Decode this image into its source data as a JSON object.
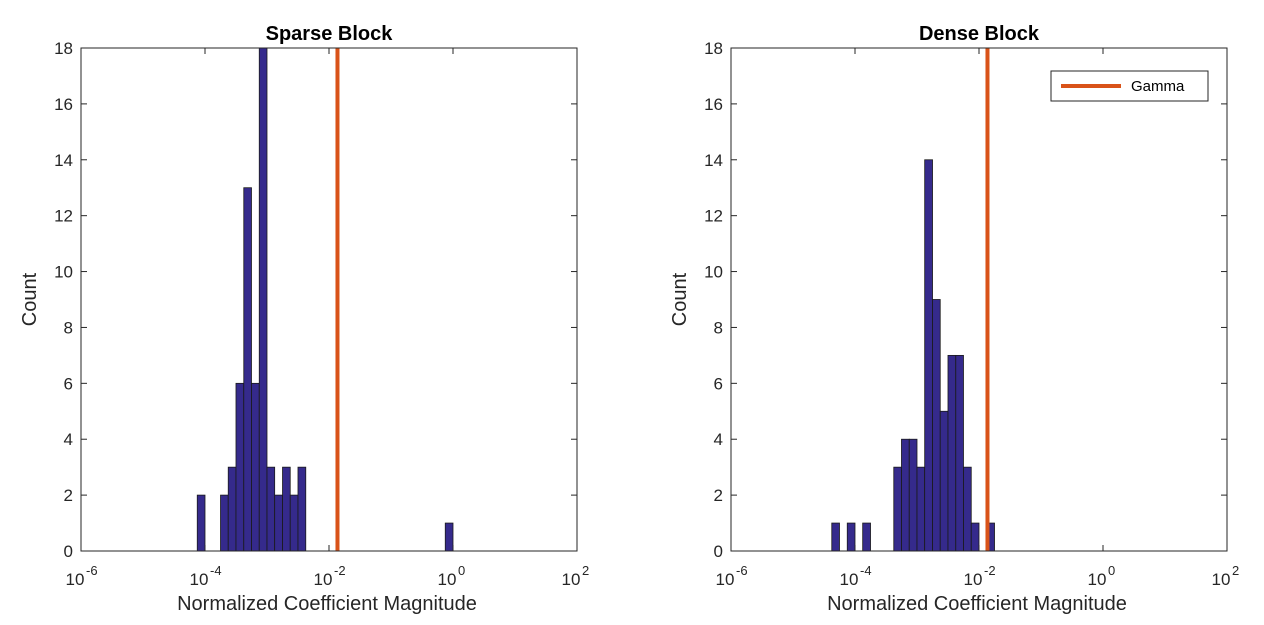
{
  "colors": {
    "bar_fill": "#352a8c",
    "bar_edge": "#1a1a1a",
    "gamma_line": "#d95319",
    "axis": "#262626",
    "background": "#ffffff"
  },
  "chart_data": [
    {
      "type": "bar",
      "subtype": "histogram",
      "title": "Sparse Block",
      "xlabel": "Normalized Coefficient Magnitude",
      "ylabel": "Count",
      "xscale": "log",
      "xlim": [
        1e-06,
        100
      ],
      "ylim": [
        0,
        18
      ],
      "yticks": [
        0,
        2,
        4,
        6,
        8,
        10,
        12,
        14,
        16,
        18
      ],
      "xtick_mantissa": [
        "10",
        "10",
        "10",
        "10",
        "10"
      ],
      "xtick_exponents": [
        "-6",
        "-4",
        "-2",
        "0",
        "2"
      ],
      "bins": {
        "edges": [
          7.5e-06,
          1e-05,
          1.33e-05,
          1.78e-05,
          2.37e-05,
          3.16e-05,
          4.22e-05,
          5.62e-05,
          7.5e-05,
          0.0001,
          0.000133,
          0.000178,
          0.000237,
          0.000316,
          0.000422,
          0.000562,
          0.00075,
          0.001,
          0.00133,
          0.00178,
          0.00237,
          0.00316,
          0.00422,
          0.00562,
          0.0075,
          0.01,
          0.0133,
          0.0178,
          0.0237,
          0.0316,
          0.0422,
          0.0562,
          0.075,
          0.1,
          0.133,
          0.178,
          0.237,
          0.316,
          0.422,
          0.562,
          0.75,
          1.0,
          1.33
        ],
        "counts": [
          0,
          0,
          0,
          0,
          0,
          0,
          0,
          0,
          2,
          0,
          0,
          2,
          3,
          6,
          13,
          6,
          18,
          3,
          2,
          3,
          2,
          3,
          0,
          0,
          0,
          0,
          0,
          0,
          0,
          0,
          0,
          0,
          0,
          0,
          0,
          0,
          0,
          0,
          0,
          0,
          1,
          0
        ]
      },
      "gamma": 0.0137,
      "legend": null
    },
    {
      "type": "bar",
      "subtype": "histogram",
      "title": "Dense Block",
      "xlabel": "Normalized Coefficient Magnitude",
      "ylabel": "Count",
      "xscale": "log",
      "xlim": [
        1e-06,
        100
      ],
      "ylim": [
        0,
        18
      ],
      "yticks": [
        0,
        2,
        4,
        6,
        8,
        10,
        12,
        14,
        16,
        18
      ],
      "xtick_mantissa": [
        "10",
        "10",
        "10",
        "10",
        "10"
      ],
      "xtick_exponents": [
        "-6",
        "-4",
        "-2",
        "0",
        "2"
      ],
      "bins": {
        "edges": [
          7.5e-06,
          1e-05,
          1.33e-05,
          1.78e-05,
          2.37e-05,
          3.16e-05,
          4.22e-05,
          5.62e-05,
          7.5e-05,
          0.0001,
          0.000133,
          0.000178,
          0.000237,
          0.000316,
          0.000422,
          0.000562,
          0.00075,
          0.001,
          0.00133,
          0.00178,
          0.00237,
          0.00316,
          0.00422,
          0.00562,
          0.0075,
          0.01,
          0.0133,
          0.0178,
          0.0237,
          0.0316,
          0.0422,
          0.0562,
          0.075,
          0.1,
          0.133,
          0.178,
          0.237,
          0.316,
          0.422,
          0.562,
          0.75,
          1.0,
          1.33
        ],
        "counts": [
          0,
          0,
          0,
          0,
          0,
          0,
          1,
          0,
          1,
          0,
          1,
          0,
          0,
          0,
          3,
          4,
          4,
          3,
          14,
          9,
          5,
          7,
          7,
          3,
          1,
          0,
          1,
          0,
          0,
          0,
          0,
          0,
          0,
          0,
          0,
          0,
          0,
          0,
          0,
          0,
          0,
          0
        ]
      },
      "gamma": 0.0137,
      "legend": {
        "entries": [
          "Gamma"
        ],
        "location": "top-right"
      }
    }
  ]
}
